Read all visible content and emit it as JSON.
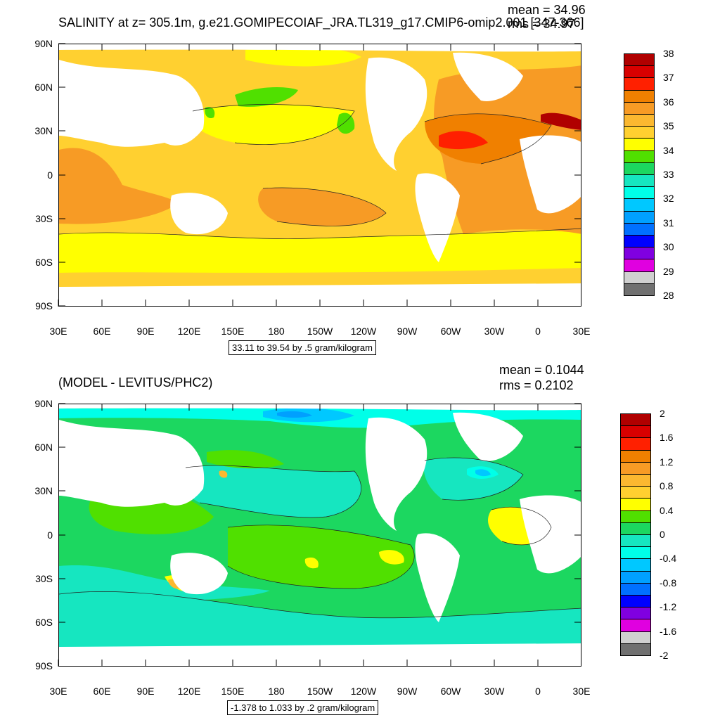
{
  "panels": [
    {
      "id": "top",
      "title": "SALINITY at z= 305.1m, g.e21.GOMIPECOIAF_JRA.TL319_g17.CMIP6-omip2.001 [347-366]",
      "mean": "mean = 34.96",
      "rms": "rms = 34.97",
      "range_text": "33.11 to 39.54 by .5 gram/kilogram",
      "lat_labels": [
        "90N",
        "60N",
        "30N",
        "0",
        "30S",
        "60S",
        "90S"
      ],
      "lon_labels": [
        "30E",
        "60E",
        "90E",
        "120E",
        "150E",
        "180",
        "150W",
        "120W",
        "90W",
        "60W",
        "30W",
        "0",
        "30E"
      ],
      "colorbar": {
        "labels": [
          "38",
          "37",
          "36",
          "35",
          "34",
          "33",
          "32",
          "31",
          "30",
          "29",
          "28"
        ],
        "colors": [
          "#b00000",
          "#d80000",
          "#ff2000",
          "#f08000",
          "#f79b25",
          "#fbb830",
          "#ffd030",
          "#ffff00",
          "#50e000",
          "#1cd760",
          "#16e6c0",
          "#00ffe8",
          "#00c8ff",
          "#00a0ff",
          "#0070ff",
          "#0000ff",
          "#8000e0",
          "#e000e0",
          "#d0d0d0",
          "#707070"
        ]
      },
      "field_colors": {
        "fresh": "#ffff00",
        "mid": "#ffd030",
        "salty": "#f79b25",
        "saltier": "#f08000",
        "max": "#ff2000",
        "green": "#50e000",
        "green2": "#1cd760",
        "hot": "#b00000"
      }
    },
    {
      "id": "bottom",
      "title": "(MODEL - LEVITUS/PHC2)",
      "mean": "mean = 0.1044",
      "rms": "rms = 0.2102",
      "range_text": "-1.378 to 1.033 by .2 gram/kilogram",
      "lat_labels": [
        "90N",
        "60N",
        "30N",
        "0",
        "30S",
        "60S",
        "90S"
      ],
      "lon_labels": [
        "30E",
        "60E",
        "90E",
        "120E",
        "150E",
        "180",
        "150W",
        "120W",
        "90W",
        "60W",
        "30W",
        "0",
        "30E"
      ],
      "colorbar": {
        "labels": [
          "2",
          "1.6",
          "1.2",
          "0.8",
          "0.4",
          "0",
          "-0.4",
          "-0.8",
          "-1.2",
          "-1.6",
          "-2"
        ],
        "colors": [
          "#b00000",
          "#d80000",
          "#ff2000",
          "#f08000",
          "#f79b25",
          "#fbb830",
          "#ffd030",
          "#ffff00",
          "#50e000",
          "#1cd760",
          "#16e6c0",
          "#00ffe8",
          "#00c8ff",
          "#00a0ff",
          "#0070ff",
          "#0000ff",
          "#8000e0",
          "#e000e0",
          "#d0d0d0",
          "#707070"
        ]
      },
      "field_colors": {
        "base": "#1cd760",
        "green": "#50e000",
        "cyan": "#16e6c0",
        "cyan2": "#00ffe8",
        "lightblue": "#00c8ff",
        "blue": "#00a0ff",
        "yellow": "#ffff00",
        "orange": "#fbb830",
        "hot": "#f08000"
      }
    }
  ]
}
